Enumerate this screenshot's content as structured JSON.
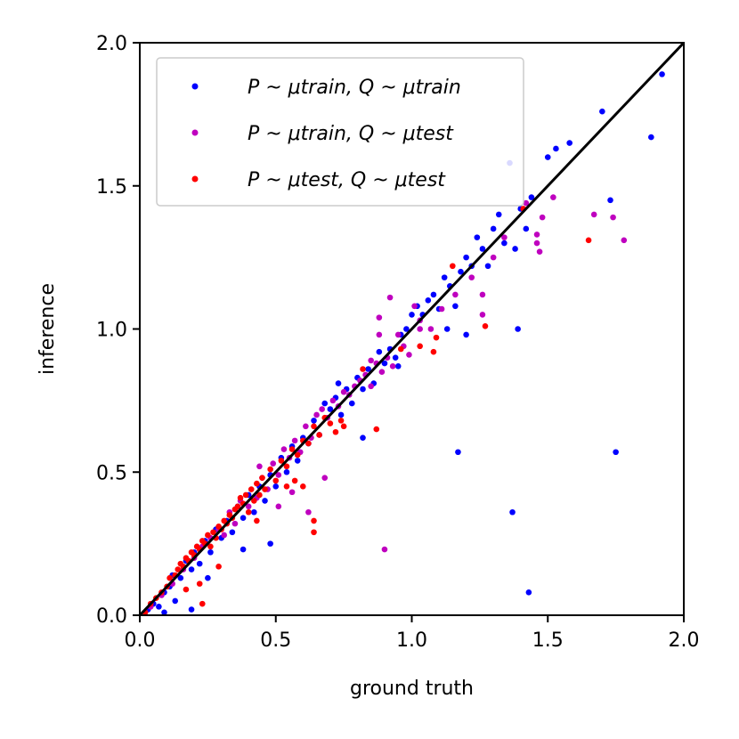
{
  "chart_data": {
    "type": "scatter",
    "title": "",
    "xlabel": "ground truth",
    "ylabel": "inference",
    "xlim": [
      0.0,
      2.0
    ],
    "ylim": [
      0.0,
      2.0
    ],
    "xticks": [
      "0.0",
      "0.5",
      "1.0",
      "1.5",
      "2.0"
    ],
    "yticks": [
      "0.0",
      "0.5",
      "1.0",
      "1.5",
      "2.0"
    ],
    "grid": false,
    "legend_position": "top-left",
    "reference_line": {
      "x": [
        0,
        2
      ],
      "y": [
        0,
        2
      ],
      "color": "#000000"
    },
    "series": [
      {
        "name": "P ~ μ_train, Q ~ μ_train",
        "color": "#0000ff",
        "points": [
          [
            0.03,
            0.02
          ],
          [
            0.05,
            0.04
          ],
          [
            0.07,
            0.03
          ],
          [
            0.09,
            0.08
          ],
          [
            0.11,
            0.1
          ],
          [
            0.12,
            0.14
          ],
          [
            0.15,
            0.13
          ],
          [
            0.17,
            0.19
          ],
          [
            0.19,
            0.16
          ],
          [
            0.2,
            0.22
          ],
          [
            0.22,
            0.18
          ],
          [
            0.24,
            0.26
          ],
          [
            0.26,
            0.22
          ],
          [
            0.28,
            0.3
          ],
          [
            0.3,
            0.27
          ],
          [
            0.32,
            0.33
          ],
          [
            0.34,
            0.29
          ],
          [
            0.36,
            0.38
          ],
          [
            0.38,
            0.34
          ],
          [
            0.4,
            0.42
          ],
          [
            0.42,
            0.36
          ],
          [
            0.44,
            0.45
          ],
          [
            0.46,
            0.4
          ],
          [
            0.48,
            0.49
          ],
          [
            0.5,
            0.45
          ],
          [
            0.52,
            0.55
          ],
          [
            0.54,
            0.5
          ],
          [
            0.56,
            0.59
          ],
          [
            0.58,
            0.54
          ],
          [
            0.6,
            0.62
          ],
          [
            0.62,
            0.6
          ],
          [
            0.64,
            0.68
          ],
          [
            0.66,
            0.63
          ],
          [
            0.68,
            0.74
          ],
          [
            0.7,
            0.72
          ],
          [
            0.72,
            0.76
          ],
          [
            0.74,
            0.7
          ],
          [
            0.76,
            0.79
          ],
          [
            0.78,
            0.74
          ],
          [
            0.8,
            0.83
          ],
          [
            0.82,
            0.79
          ],
          [
            0.84,
            0.86
          ],
          [
            0.86,
            0.81
          ],
          [
            0.88,
            0.92
          ],
          [
            0.9,
            0.88
          ],
          [
            0.92,
            0.93
          ],
          [
            0.94,
            0.9
          ],
          [
            0.96,
            0.98
          ],
          [
            0.98,
            1.0
          ],
          [
            1.0,
            1.05
          ],
          [
            1.02,
            1.08
          ],
          [
            1.04,
            1.05
          ],
          [
            1.06,
            1.1
          ],
          [
            1.08,
            1.12
          ],
          [
            1.1,
            1.07
          ],
          [
            1.12,
            1.18
          ],
          [
            1.14,
            1.15
          ],
          [
            1.16,
            1.08
          ],
          [
            1.18,
            1.2
          ],
          [
            1.2,
            1.25
          ],
          [
            1.22,
            1.22
          ],
          [
            1.24,
            1.32
          ],
          [
            1.26,
            1.28
          ],
          [
            1.28,
            1.22
          ],
          [
            1.3,
            1.35
          ],
          [
            1.32,
            1.4
          ],
          [
            1.34,
            1.3
          ],
          [
            1.36,
            1.58
          ],
          [
            1.38,
            1.28
          ],
          [
            1.4,
            1.42
          ],
          [
            1.42,
            1.35
          ],
          [
            1.44,
            1.46
          ],
          [
            1.5,
            1.6
          ],
          [
            1.53,
            1.63
          ],
          [
            1.58,
            1.65
          ],
          [
            1.7,
            1.76
          ],
          [
            1.73,
            1.45
          ],
          [
            1.88,
            1.67
          ],
          [
            1.92,
            1.89
          ],
          [
            0.25,
            0.13
          ],
          [
            0.38,
            0.23
          ],
          [
            0.48,
            0.25
          ],
          [
            0.82,
            0.62
          ],
          [
            1.17,
            0.57
          ],
          [
            1.37,
            0.36
          ],
          [
            1.43,
            0.08
          ],
          [
            1.75,
            0.57
          ],
          [
            0.09,
            0.01
          ],
          [
            0.13,
            0.05
          ],
          [
            0.19,
            0.02
          ],
          [
            0.95,
            0.87
          ],
          [
            1.13,
            1.0
          ],
          [
            1.39,
            1.0
          ],
          [
            1.2,
            0.98
          ],
          [
            0.73,
            0.81
          ]
        ]
      },
      {
        "name": "P ~ μ_train, Q ~ μ_test",
        "color": "#bf00bf",
        "points": [
          [
            0.04,
            0.03
          ],
          [
            0.08,
            0.07
          ],
          [
            0.12,
            0.11
          ],
          [
            0.16,
            0.16
          ],
          [
            0.2,
            0.2
          ],
          [
            0.23,
            0.24
          ],
          [
            0.26,
            0.27
          ],
          [
            0.29,
            0.3
          ],
          [
            0.31,
            0.28
          ],
          [
            0.33,
            0.36
          ],
          [
            0.35,
            0.32
          ],
          [
            0.37,
            0.4
          ],
          [
            0.4,
            0.38
          ],
          [
            0.43,
            0.41
          ],
          [
            0.45,
            0.48
          ],
          [
            0.47,
            0.44
          ],
          [
            0.49,
            0.53
          ],
          [
            0.51,
            0.49
          ],
          [
            0.53,
            0.58
          ],
          [
            0.55,
            0.55
          ],
          [
            0.57,
            0.61
          ],
          [
            0.59,
            0.57
          ],
          [
            0.61,
            0.66
          ],
          [
            0.63,
            0.62
          ],
          [
            0.65,
            0.7
          ],
          [
            0.67,
            0.72
          ],
          [
            0.69,
            0.69
          ],
          [
            0.71,
            0.75
          ],
          [
            0.73,
            0.73
          ],
          [
            0.75,
            0.78
          ],
          [
            0.77,
            0.77
          ],
          [
            0.79,
            0.8
          ],
          [
            0.81,
            0.82
          ],
          [
            0.83,
            0.84
          ],
          [
            0.85,
            0.8
          ],
          [
            0.87,
            0.88
          ],
          [
            0.89,
            0.85
          ],
          [
            0.91,
            0.9
          ],
          [
            0.93,
            0.87
          ],
          [
            0.95,
            0.98
          ],
          [
            0.97,
            0.94
          ],
          [
            0.99,
            0.91
          ],
          [
            1.01,
            1.08
          ],
          [
            1.03,
            1.03
          ],
          [
            1.07,
            1.0
          ],
          [
            1.11,
            1.07
          ],
          [
            1.16,
            1.12
          ],
          [
            1.22,
            1.18
          ],
          [
            1.26,
            1.12
          ],
          [
            1.3,
            1.25
          ],
          [
            1.34,
            1.32
          ],
          [
            1.42,
            1.44
          ],
          [
            1.46,
            1.33
          ],
          [
            1.48,
            1.39
          ],
          [
            1.52,
            1.46
          ],
          [
            1.67,
            1.4
          ],
          [
            1.74,
            1.39
          ],
          [
            1.78,
            1.31
          ],
          [
            0.85,
            0.89
          ],
          [
            0.88,
            0.98
          ],
          [
            0.9,
            0.23
          ],
          [
            0.62,
            0.36
          ],
          [
            0.51,
            0.38
          ],
          [
            0.44,
            0.52
          ],
          [
            0.92,
            1.11
          ],
          [
            0.88,
            1.04
          ],
          [
            1.03,
            1.0
          ],
          [
            1.26,
            1.05
          ],
          [
            1.47,
            1.27
          ],
          [
            1.46,
            1.3
          ],
          [
            0.56,
            0.43
          ],
          [
            0.68,
            0.48
          ]
        ]
      },
      {
        "name": "P ~ μ_test, Q ~ μ_test",
        "color": "#ff0000",
        "points": [
          [
            0.02,
            0.01
          ],
          [
            0.04,
            0.04
          ],
          [
            0.06,
            0.06
          ],
          [
            0.08,
            0.08
          ],
          [
            0.1,
            0.1
          ],
          [
            0.11,
            0.13
          ],
          [
            0.13,
            0.14
          ],
          [
            0.14,
            0.16
          ],
          [
            0.15,
            0.18
          ],
          [
            0.16,
            0.17
          ],
          [
            0.17,
            0.2
          ],
          [
            0.18,
            0.19
          ],
          [
            0.19,
            0.22
          ],
          [
            0.2,
            0.21
          ],
          [
            0.21,
            0.24
          ],
          [
            0.22,
            0.23
          ],
          [
            0.23,
            0.26
          ],
          [
            0.24,
            0.25
          ],
          [
            0.25,
            0.28
          ],
          [
            0.26,
            0.24
          ],
          [
            0.27,
            0.29
          ],
          [
            0.28,
            0.27
          ],
          [
            0.29,
            0.31
          ],
          [
            0.3,
            0.3
          ],
          [
            0.31,
            0.33
          ],
          [
            0.32,
            0.32
          ],
          [
            0.33,
            0.35
          ],
          [
            0.34,
            0.34
          ],
          [
            0.35,
            0.37
          ],
          [
            0.36,
            0.38
          ],
          [
            0.37,
            0.41
          ],
          [
            0.38,
            0.39
          ],
          [
            0.39,
            0.42
          ],
          [
            0.4,
            0.36
          ],
          [
            0.41,
            0.44
          ],
          [
            0.42,
            0.4
          ],
          [
            0.43,
            0.46
          ],
          [
            0.44,
            0.42
          ],
          [
            0.45,
            0.48
          ],
          [
            0.46,
            0.44
          ],
          [
            0.48,
            0.51
          ],
          [
            0.5,
            0.47
          ],
          [
            0.52,
            0.54
          ],
          [
            0.54,
            0.52
          ],
          [
            0.56,
            0.58
          ],
          [
            0.58,
            0.56
          ],
          [
            0.6,
            0.61
          ],
          [
            0.62,
            0.6
          ],
          [
            0.64,
            0.66
          ],
          [
            0.66,
            0.63
          ],
          [
            0.68,
            0.69
          ],
          [
            0.7,
            0.67
          ],
          [
            0.72,
            0.64
          ],
          [
            0.74,
            0.68
          ],
          [
            0.87,
            0.65
          ],
          [
            0.96,
            0.93
          ],
          [
            1.03,
            0.94
          ],
          [
            1.08,
            0.92
          ],
          [
            1.09,
            0.97
          ],
          [
            1.15,
            1.22
          ],
          [
            1.27,
            1.01
          ],
          [
            1.41,
            1.42
          ],
          [
            1.65,
            1.31
          ],
          [
            0.64,
            0.29
          ],
          [
            0.64,
            0.33
          ],
          [
            0.23,
            0.04
          ],
          [
            0.17,
            0.09
          ],
          [
            0.22,
            0.11
          ],
          [
            0.29,
            0.17
          ],
          [
            0.43,
            0.33
          ],
          [
            0.54,
            0.45
          ],
          [
            0.57,
            0.47
          ],
          [
            0.82,
            0.86
          ],
          [
            0.6,
            0.45
          ],
          [
            0.75,
            0.66
          ]
        ]
      }
    ]
  },
  "legend": {
    "entries": [
      {
        "series": 0,
        "text": "P ~ μtrain, Q ~ μtrain"
      },
      {
        "series": 1,
        "text": "P ~ μtrain, Q ~ μtest"
      },
      {
        "series": 2,
        "text": "P ~ μtest, Q ~ μtest"
      }
    ]
  }
}
